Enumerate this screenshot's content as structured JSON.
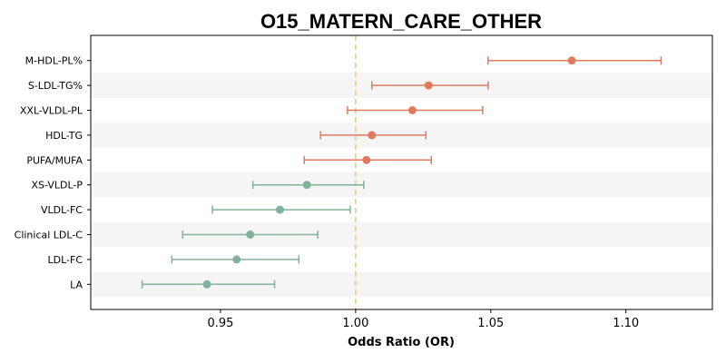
{
  "chart_data": {
    "type": "forest",
    "title": "O15_MATERN_CARE_OTHER",
    "xlabel": "Odds Ratio (OR)",
    "ylabel": "",
    "xlim": [
      0.902,
      1.132
    ],
    "xticks": [
      0.95,
      1.0,
      1.05,
      1.1
    ],
    "xtick_labels": [
      "0.95",
      "1.00",
      "1.05",
      "1.10"
    ],
    "reference_line": 1.0,
    "reference_color": "#f5c77e",
    "grid": false,
    "row_stripe_color": "#f5f5f5",
    "positive_color": "#e07a5f",
    "negative_color": "#81b29a",
    "rows": [
      {
        "label": "M-HDL-PL%",
        "or": 1.08,
        "lo": 1.049,
        "hi": 1.113
      },
      {
        "label": "S-LDL-TG%",
        "or": 1.027,
        "lo": 1.006,
        "hi": 1.049
      },
      {
        "label": "XXL-VLDL-PL",
        "or": 1.021,
        "lo": 0.997,
        "hi": 1.047
      },
      {
        "label": "HDL-TG",
        "or": 1.006,
        "lo": 0.987,
        "hi": 1.026
      },
      {
        "label": "PUFA/MUFA",
        "or": 1.004,
        "lo": 0.981,
        "hi": 1.028
      },
      {
        "label": "XS-VLDL-P",
        "or": 0.982,
        "lo": 0.962,
        "hi": 1.003
      },
      {
        "label": "VLDL-FC",
        "or": 0.972,
        "lo": 0.947,
        "hi": 0.998
      },
      {
        "label": "Clinical LDL-C",
        "or": 0.961,
        "lo": 0.936,
        "hi": 0.986
      },
      {
        "label": "LDL-FC",
        "or": 0.956,
        "lo": 0.932,
        "hi": 0.979
      },
      {
        "label": "LA",
        "or": 0.945,
        "lo": 0.921,
        "hi": 0.97
      }
    ]
  }
}
